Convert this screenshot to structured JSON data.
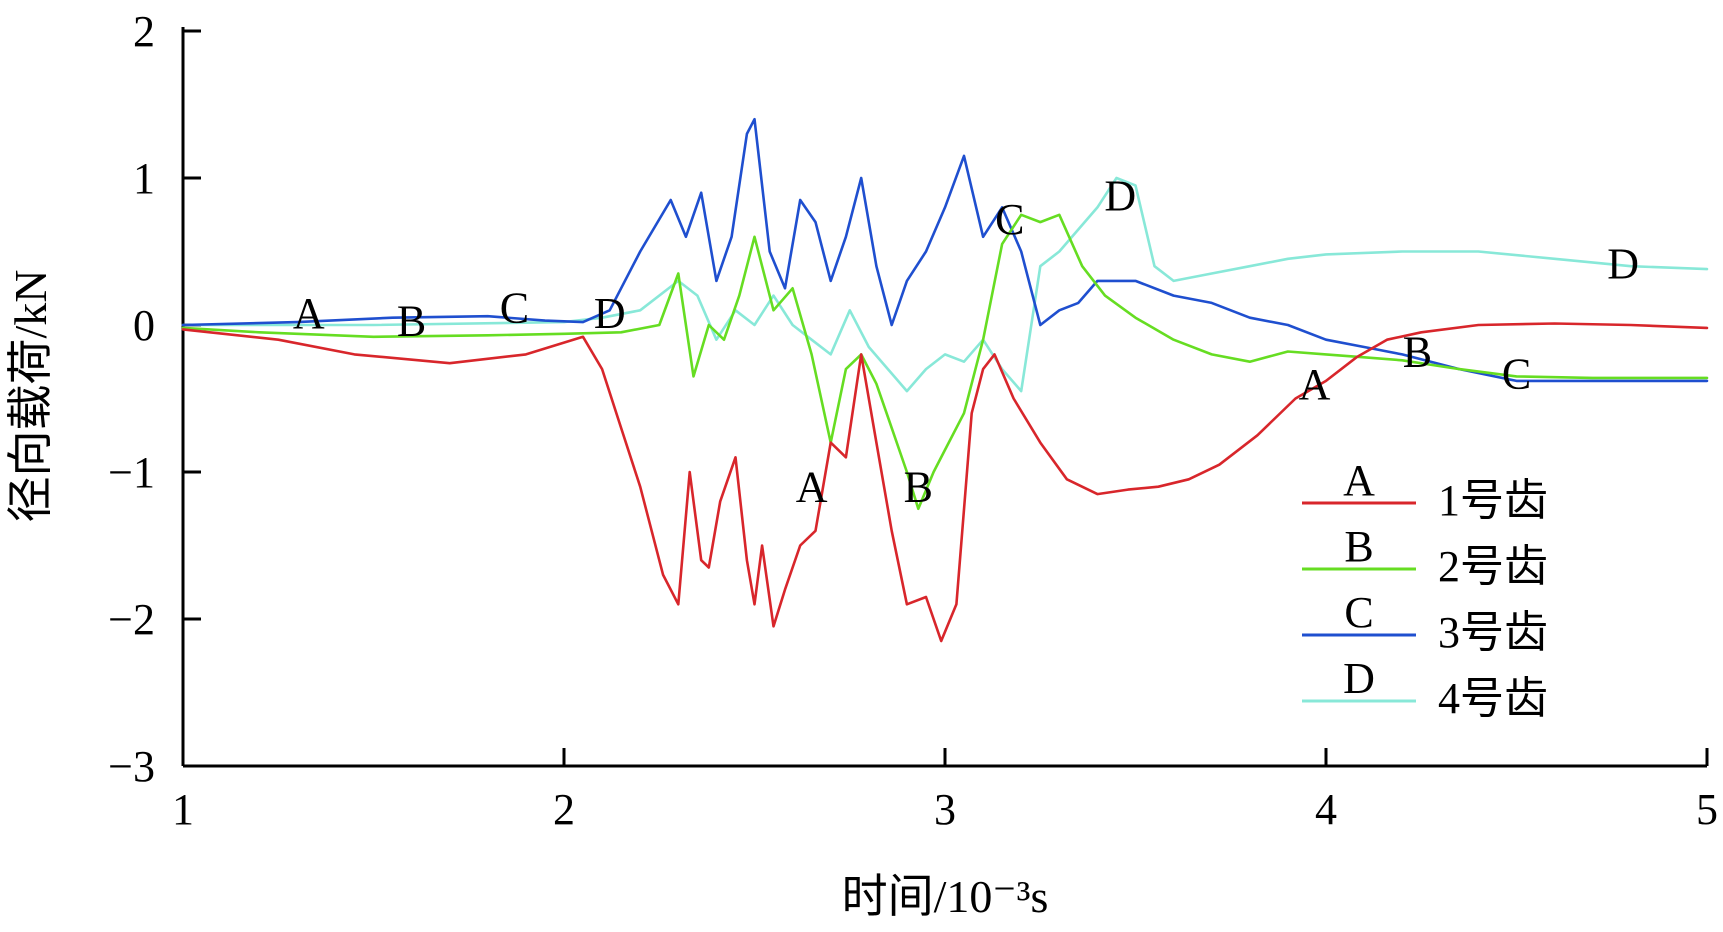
{
  "chart_data": {
    "type": "line",
    "title": "",
    "xlabel": "时间/10⁻³s",
    "ylabel": "径向载荷/kN",
    "xlim": [
      1,
      5
    ],
    "ylim": [
      -3,
      2
    ],
    "x_ticks": [
      "1",
      "2",
      "3",
      "4",
      "5"
    ],
    "y_ticks": [
      "2",
      "1",
      "0",
      "−1",
      "−2",
      "−3"
    ],
    "grid": false,
    "legend_position": "right",
    "series": [
      {
        "name": "1号齿",
        "marker": "A",
        "color": "#d8262b",
        "x": [
          1.0,
          1.25,
          1.45,
          1.7,
          1.9,
          2.05,
          2.1,
          2.15,
          2.2,
          2.26,
          2.3,
          2.33,
          2.36,
          2.38,
          2.41,
          2.45,
          2.48,
          2.5,
          2.52,
          2.55,
          2.58,
          2.62,
          2.66,
          2.7,
          2.74,
          2.78,
          2.82,
          2.86,
          2.9,
          2.95,
          2.99,
          3.03,
          3.07,
          3.1,
          3.13,
          3.18,
          3.25,
          3.32,
          3.4,
          3.48,
          3.56,
          3.64,
          3.72,
          3.82,
          3.92,
          4.0,
          4.08,
          4.16,
          4.25,
          4.4,
          4.6,
          4.8,
          5.0
        ],
        "y": [
          -0.03,
          -0.1,
          -0.2,
          -0.26,
          -0.2,
          -0.08,
          -0.3,
          -0.7,
          -1.1,
          -1.7,
          -1.9,
          -1.0,
          -1.6,
          -1.65,
          -1.2,
          -0.9,
          -1.6,
          -1.9,
          -1.5,
          -2.05,
          -1.8,
          -1.5,
          -1.4,
          -0.8,
          -0.9,
          -0.2,
          -0.8,
          -1.4,
          -1.9,
          -1.85,
          -2.15,
          -1.9,
          -0.6,
          -0.3,
          -0.2,
          -0.5,
          -0.8,
          -1.05,
          -1.15,
          -1.12,
          -1.1,
          -1.05,
          -0.95,
          -0.75,
          -0.5,
          -0.38,
          -0.22,
          -0.1,
          -0.05,
          0.0,
          0.01,
          0.0,
          -0.02
        ]
      },
      {
        "name": "2号齿",
        "marker": "B",
        "color": "#66dd22",
        "x": [
          1.0,
          1.2,
          1.5,
          1.8,
          2.0,
          2.15,
          2.25,
          2.3,
          2.34,
          2.38,
          2.42,
          2.46,
          2.5,
          2.55,
          2.6,
          2.65,
          2.7,
          2.74,
          2.78,
          2.82,
          2.86,
          2.9,
          2.93,
          2.97,
          3.0,
          3.05,
          3.1,
          3.15,
          3.2,
          3.25,
          3.3,
          3.36,
          3.42,
          3.5,
          3.6,
          3.7,
          3.8,
          3.9,
          4.0,
          4.1,
          4.2,
          4.35,
          4.5,
          4.7,
          5.0
        ],
        "y": [
          -0.02,
          -0.05,
          -0.08,
          -0.07,
          -0.06,
          -0.05,
          0.0,
          0.35,
          -0.35,
          0.0,
          -0.1,
          0.2,
          0.6,
          0.1,
          0.25,
          -0.2,
          -0.8,
          -0.3,
          -0.2,
          -0.4,
          -0.7,
          -1.0,
          -1.25,
          -1.0,
          -0.85,
          -0.6,
          -0.1,
          0.55,
          0.75,
          0.7,
          0.75,
          0.4,
          0.2,
          0.05,
          -0.1,
          -0.2,
          -0.25,
          -0.18,
          -0.2,
          -0.22,
          -0.24,
          -0.3,
          -0.35,
          -0.36,
          -0.36
        ]
      },
      {
        "name": "3号齿",
        "marker": "C",
        "color": "#1f4fcf",
        "x": [
          1.0,
          1.3,
          1.55,
          1.8,
          1.95,
          2.05,
          2.12,
          2.2,
          2.28,
          2.32,
          2.36,
          2.4,
          2.44,
          2.48,
          2.5,
          2.54,
          2.58,
          2.62,
          2.66,
          2.7,
          2.74,
          2.78,
          2.82,
          2.86,
          2.9,
          2.95,
          3.0,
          3.05,
          3.1,
          3.15,
          3.2,
          3.25,
          3.3,
          3.35,
          3.4,
          3.5,
          3.6,
          3.7,
          3.8,
          3.9,
          4.0,
          4.1,
          4.2,
          4.35,
          4.5,
          4.7,
          5.0
        ],
        "y": [
          0.0,
          0.02,
          0.05,
          0.06,
          0.03,
          0.02,
          0.1,
          0.5,
          0.85,
          0.6,
          0.9,
          0.3,
          0.6,
          1.3,
          1.4,
          0.5,
          0.25,
          0.85,
          0.7,
          0.3,
          0.6,
          1.0,
          0.4,
          0.0,
          0.3,
          0.5,
          0.8,
          1.15,
          0.6,
          0.8,
          0.5,
          0.0,
          0.1,
          0.15,
          0.3,
          0.3,
          0.2,
          0.15,
          0.05,
          0.0,
          -0.1,
          -0.15,
          -0.2,
          -0.3,
          -0.38,
          -0.38,
          -0.38
        ]
      },
      {
        "name": "4号齿",
        "marker": "D",
        "color": "#88e8d8",
        "x": [
          1.0,
          1.5,
          2.0,
          2.1,
          2.2,
          2.3,
          2.35,
          2.4,
          2.45,
          2.5,
          2.55,
          2.6,
          2.65,
          2.7,
          2.75,
          2.8,
          2.85,
          2.9,
          2.95,
          3.0,
          3.05,
          3.1,
          3.15,
          3.2,
          3.25,
          3.3,
          3.4,
          3.45,
          3.5,
          3.55,
          3.6,
          3.7,
          3.8,
          3.9,
          4.0,
          4.2,
          4.4,
          4.6,
          4.8,
          5.0
        ],
        "y": [
          0.0,
          0.0,
          0.02,
          0.05,
          0.1,
          0.3,
          0.2,
          -0.1,
          0.1,
          0.0,
          0.2,
          0.0,
          -0.1,
          -0.2,
          0.1,
          -0.15,
          -0.3,
          -0.45,
          -0.3,
          -0.2,
          -0.25,
          -0.1,
          -0.3,
          -0.45,
          0.4,
          0.5,
          0.8,
          1.0,
          0.95,
          0.4,
          0.3,
          0.35,
          0.4,
          0.45,
          0.48,
          0.5,
          0.5,
          0.45,
          0.4,
          0.38
        ]
      }
    ],
    "annotations": [
      {
        "text": "A",
        "x": 1.33,
        "y": 0.08
      },
      {
        "text": "B",
        "x": 1.6,
        "y": 0.03
      },
      {
        "text": "C",
        "x": 1.87,
        "y": 0.12
      },
      {
        "text": "D",
        "x": 2.12,
        "y": 0.08
      },
      {
        "text": "A",
        "x": 2.65,
        "y": -1.1
      },
      {
        "text": "B",
        "x": 2.93,
        "y": -1.1
      },
      {
        "text": "C",
        "x": 3.17,
        "y": 0.72
      },
      {
        "text": "D",
        "x": 3.46,
        "y": 0.88
      },
      {
        "text": "A",
        "x": 3.97,
        "y": -0.4
      },
      {
        "text": "B",
        "x": 4.24,
        "y": -0.18
      },
      {
        "text": "C",
        "x": 4.5,
        "y": -0.33
      },
      {
        "text": "D",
        "x": 4.78,
        "y": 0.42
      }
    ]
  }
}
